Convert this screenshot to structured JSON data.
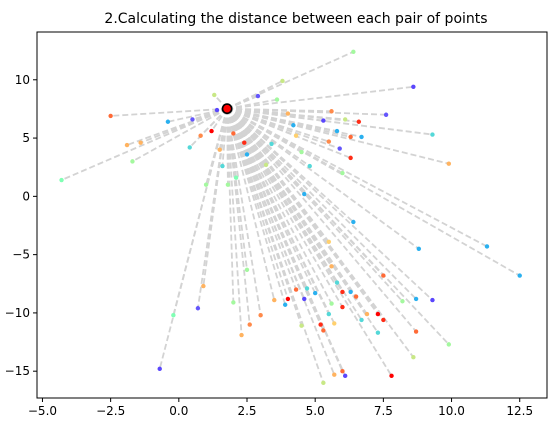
{
  "chart_data": {
    "type": "scatter",
    "title": "2.Calculating the distance between each pair of points",
    "xlabel": "",
    "ylabel": "",
    "xlim": [
      -5.2,
      13.5
    ],
    "ylim": [
      -17.3,
      14.1
    ],
    "xticks": [
      -5.0,
      -2.5,
      0.0,
      2.5,
      5.0,
      7.5,
      10.0,
      12.5
    ],
    "yticks": [
      -15,
      -10,
      -5,
      0,
      5,
      10
    ],
    "xtick_labels": [
      "−5.0",
      "−2.5",
      "0.0",
      "2.5",
      "5.0",
      "7.5",
      "10.0",
      "12.5"
    ],
    "ytick_labels": [
      "−15",
      "−10",
      "−5",
      "0",
      "5",
      "10"
    ],
    "grid": false,
    "center": {
      "x": 1.77,
      "y": 7.52,
      "color": "#ff0000"
    },
    "line_color": "#d3d3d3",
    "line_style": "dashed",
    "colormap": "rainbow",
    "points": [
      {
        "x": -4.3,
        "y": 1.4,
        "color": "#80ffb4"
      },
      {
        "x": -2.5,
        "y": 6.9,
        "color": "#ff6a36"
      },
      {
        "x": -1.9,
        "y": 4.4,
        "color": "#ffb360"
      },
      {
        "x": -1.7,
        "y": 3.0,
        "color": "#a4f89f"
      },
      {
        "x": -1.4,
        "y": 4.6,
        "color": "#ffb360"
      },
      {
        "x": -0.4,
        "y": 6.4,
        "color": "#2ab0ef"
      },
      {
        "x": 0.4,
        "y": 4.2,
        "color": "#54d8d8"
      },
      {
        "x": 0.5,
        "y": 6.6,
        "color": "#6456fc"
      },
      {
        "x": 0.8,
        "y": 5.2,
        "color": "#ff8a4a"
      },
      {
        "x": 1.0,
        "y": 1.0,
        "color": "#a4f89f"
      },
      {
        "x": 1.3,
        "y": 8.7,
        "color": "#c8e886"
      },
      {
        "x": 1.4,
        "y": 7.4,
        "color": "#5a46fd"
      },
      {
        "x": 1.2,
        "y": 5.6,
        "color": "#ff0000"
      },
      {
        "x": 1.5,
        "y": 4.0,
        "color": "#ffb360"
      },
      {
        "x": 1.6,
        "y": 2.6,
        "color": "#54d8d8"
      },
      {
        "x": 1.8,
        "y": 1.0,
        "color": "#a4f89f"
      },
      {
        "x": 2.0,
        "y": 5.4,
        "color": "#ff6a36"
      },
      {
        "x": 2.1,
        "y": 1.6,
        "color": "#80ffb4"
      },
      {
        "x": 2.4,
        "y": 4.6,
        "color": "#ff2c16"
      },
      {
        "x": 2.5,
        "y": 3.6,
        "color": "#2ab0ef"
      },
      {
        "x": 2.9,
        "y": 8.6,
        "color": "#6456fc"
      },
      {
        "x": 3.2,
        "y": 2.7,
        "color": "#c8e886"
      },
      {
        "x": 3.4,
        "y": 4.5,
        "color": "#54d8d8"
      },
      {
        "x": 3.6,
        "y": 8.3,
        "color": "#a4f89f"
      },
      {
        "x": 3.8,
        "y": 9.9,
        "color": "#c8e886"
      },
      {
        "x": 4.0,
        "y": 7.1,
        "color": "#ffb360"
      },
      {
        "x": 4.2,
        "y": 6.1,
        "color": "#2ab0ef"
      },
      {
        "x": 4.3,
        "y": 5.2,
        "color": "#ffd06e"
      },
      {
        "x": 4.5,
        "y": 3.8,
        "color": "#a4f89f"
      },
      {
        "x": 4.6,
        "y": 0.2,
        "color": "#2ab0ef"
      },
      {
        "x": 4.8,
        "y": 2.6,
        "color": "#54d8d8"
      },
      {
        "x": 5.3,
        "y": 6.5,
        "color": "#5a46fd"
      },
      {
        "x": 5.5,
        "y": 4.7,
        "color": "#ff8a4a"
      },
      {
        "x": 5.6,
        "y": 7.3,
        "color": "#ff8a4a"
      },
      {
        "x": 5.8,
        "y": 5.6,
        "color": "#2ab0ef"
      },
      {
        "x": 5.9,
        "y": 4.1,
        "color": "#6456fc"
      },
      {
        "x": 6.0,
        "y": 2.0,
        "color": "#a4f89f"
      },
      {
        "x": 6.1,
        "y": 6.6,
        "color": "#c8e886"
      },
      {
        "x": 6.3,
        "y": 5.1,
        "color": "#ff6a36"
      },
      {
        "x": 6.3,
        "y": 3.3,
        "color": "#ff2c16"
      },
      {
        "x": 6.4,
        "y": 12.4,
        "color": "#a4f89f"
      },
      {
        "x": 6.6,
        "y": 6.4,
        "color": "#ff2c16"
      },
      {
        "x": 6.7,
        "y": 5.1,
        "color": "#2ab0ef"
      },
      {
        "x": 6.4,
        "y": -2.2,
        "color": "#2ab0ef"
      },
      {
        "x": 7.6,
        "y": 7.0,
        "color": "#6456fc"
      },
      {
        "x": 8.6,
        "y": 9.4,
        "color": "#5a46fd"
      },
      {
        "x": 9.3,
        "y": 5.3,
        "color": "#54d8d8"
      },
      {
        "x": 9.9,
        "y": 2.8,
        "color": "#ffb360"
      },
      {
        "x": 8.8,
        "y": -4.5,
        "color": "#2ab0ef"
      },
      {
        "x": 11.3,
        "y": -4.3,
        "color": "#2ab0ef"
      },
      {
        "x": 12.5,
        "y": -6.8,
        "color": "#2ab0ef"
      },
      {
        "x": 9.3,
        "y": -8.9,
        "color": "#5a46fd"
      },
      {
        "x": 8.7,
        "y": -8.8,
        "color": "#2ab0ef"
      },
      {
        "x": 7.5,
        "y": -6.8,
        "color": "#ff6a36"
      },
      {
        "x": 8.2,
        "y": -9.0,
        "color": "#a4f89f"
      },
      {
        "x": 8.7,
        "y": -11.6,
        "color": "#ff6a36"
      },
      {
        "x": 9.9,
        "y": -12.7,
        "color": "#a4f89f"
      },
      {
        "x": 8.6,
        "y": -13.8,
        "color": "#c8e886"
      },
      {
        "x": 7.8,
        "y": -15.4,
        "color": "#ff0000"
      },
      {
        "x": 7.5,
        "y": -10.6,
        "color": "#ff2c16"
      },
      {
        "x": 7.3,
        "y": -10.1,
        "color": "#ff0000"
      },
      {
        "x": 7.3,
        "y": -11.7,
        "color": "#54d8d8"
      },
      {
        "x": 6.9,
        "y": -10.1,
        "color": "#ffb360"
      },
      {
        "x": 6.7,
        "y": -10.6,
        "color": "#54d8d8"
      },
      {
        "x": 6.5,
        "y": -8.6,
        "color": "#ff6a36"
      },
      {
        "x": 6.3,
        "y": -8.2,
        "color": "#2ab0ef"
      },
      {
        "x": 6.0,
        "y": -8.2,
        "color": "#ff2c16"
      },
      {
        "x": 6.0,
        "y": -9.5,
        "color": "#ff2c16"
      },
      {
        "x": 5.8,
        "y": -7.4,
        "color": "#54d8d8"
      },
      {
        "x": 5.6,
        "y": -6.0,
        "color": "#ffb360"
      },
      {
        "x": 5.6,
        "y": -9.2,
        "color": "#a4f89f"
      },
      {
        "x": 5.5,
        "y": -10.1,
        "color": "#54d8d8"
      },
      {
        "x": 5.5,
        "y": -3.9,
        "color": "#ffd06e"
      },
      {
        "x": 5.7,
        "y": -10.9,
        "color": "#ffd06e"
      },
      {
        "x": 6.0,
        "y": -15.0,
        "color": "#ff6a36"
      },
      {
        "x": 6.1,
        "y": -15.4,
        "color": "#5a46fd"
      },
      {
        "x": 5.7,
        "y": -15.3,
        "color": "#ffb360"
      },
      {
        "x": 5.3,
        "y": -16.0,
        "color": "#c8e886"
      },
      {
        "x": 5.2,
        "y": -11.0,
        "color": "#ff2c16"
      },
      {
        "x": 5.3,
        "y": -11.5,
        "color": "#ff6a36"
      },
      {
        "x": 5.0,
        "y": -8.3,
        "color": "#2ab0ef"
      },
      {
        "x": 4.7,
        "y": -7.9,
        "color": "#54d8d8"
      },
      {
        "x": 4.5,
        "y": -11.1,
        "color": "#c8e886"
      },
      {
        "x": 4.6,
        "y": -8.8,
        "color": "#5a46fd"
      },
      {
        "x": 4.3,
        "y": -8.0,
        "color": "#ff6a36"
      },
      {
        "x": 4.0,
        "y": -8.8,
        "color": "#ff0000"
      },
      {
        "x": 3.9,
        "y": -9.3,
        "color": "#2ab0ef"
      },
      {
        "x": 3.5,
        "y": -8.9,
        "color": "#ffb360"
      },
      {
        "x": 3.0,
        "y": -10.2,
        "color": "#ff8a4a"
      },
      {
        "x": 2.6,
        "y": -11.0,
        "color": "#ff8a4a"
      },
      {
        "x": 2.5,
        "y": -6.3,
        "color": "#a4f89f"
      },
      {
        "x": 2.3,
        "y": -11.9,
        "color": "#ffb360"
      },
      {
        "x": 2.0,
        "y": -9.1,
        "color": "#a4f89f"
      },
      {
        "x": 0.9,
        "y": -7.7,
        "color": "#ffb360"
      },
      {
        "x": 0.7,
        "y": -9.6,
        "color": "#6456fc"
      },
      {
        "x": -0.2,
        "y": -10.2,
        "color": "#80ffb4"
      },
      {
        "x": -0.7,
        "y": -14.8,
        "color": "#5a46fd"
      }
    ]
  }
}
